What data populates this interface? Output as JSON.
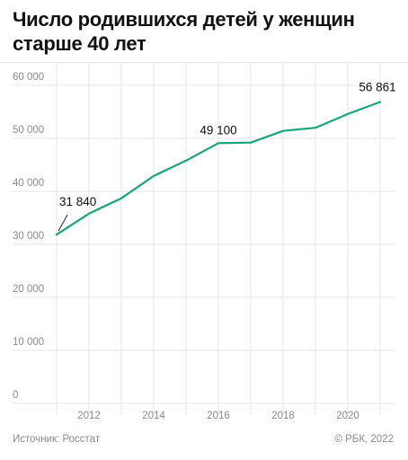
{
  "title": "Число родившихся детей у женщин старше 40 лет",
  "source": "Источник: Росстат",
  "copyright": "© РБК, 2022",
  "colors": {
    "line": "#17a57a",
    "grid": "#e6e6e6",
    "text": "#111111",
    "muted": "#8a8a8a"
  },
  "chart_data": {
    "type": "line",
    "title": "Число родившихся детей у женщин старше 40 лет",
    "xlabel": "",
    "ylabel": "",
    "x": [
      2011,
      2012,
      2013,
      2014,
      2015,
      2016,
      2017,
      2018,
      2019,
      2020,
      2021
    ],
    "series": [
      {
        "values": [
          31840,
          35800,
          38700,
          42900,
          45800,
          49100,
          49200,
          51400,
          52000,
          54600,
          56861
        ]
      }
    ],
    "xlim": [
      2011,
      2021
    ],
    "ylim": [
      0,
      60000
    ],
    "yticks": [
      0,
      10000,
      20000,
      30000,
      40000,
      50000,
      60000
    ],
    "ytick_labels": [
      "0",
      "10 000",
      "20 000",
      "30 000",
      "40 000",
      "50 000",
      "60 000"
    ],
    "xticks": [
      2012,
      2014,
      2016,
      2018,
      2020
    ],
    "xtick_labels": [
      "2012",
      "2014",
      "2016",
      "2018",
      "2020"
    ],
    "annotations": [
      {
        "x": 2011,
        "y": 31840,
        "text": "31 840"
      },
      {
        "x": 2016,
        "y": 49100,
        "text": "49 100"
      },
      {
        "x": 2021,
        "y": 56861,
        "text": "56 861"
      }
    ],
    "grid": true
  }
}
